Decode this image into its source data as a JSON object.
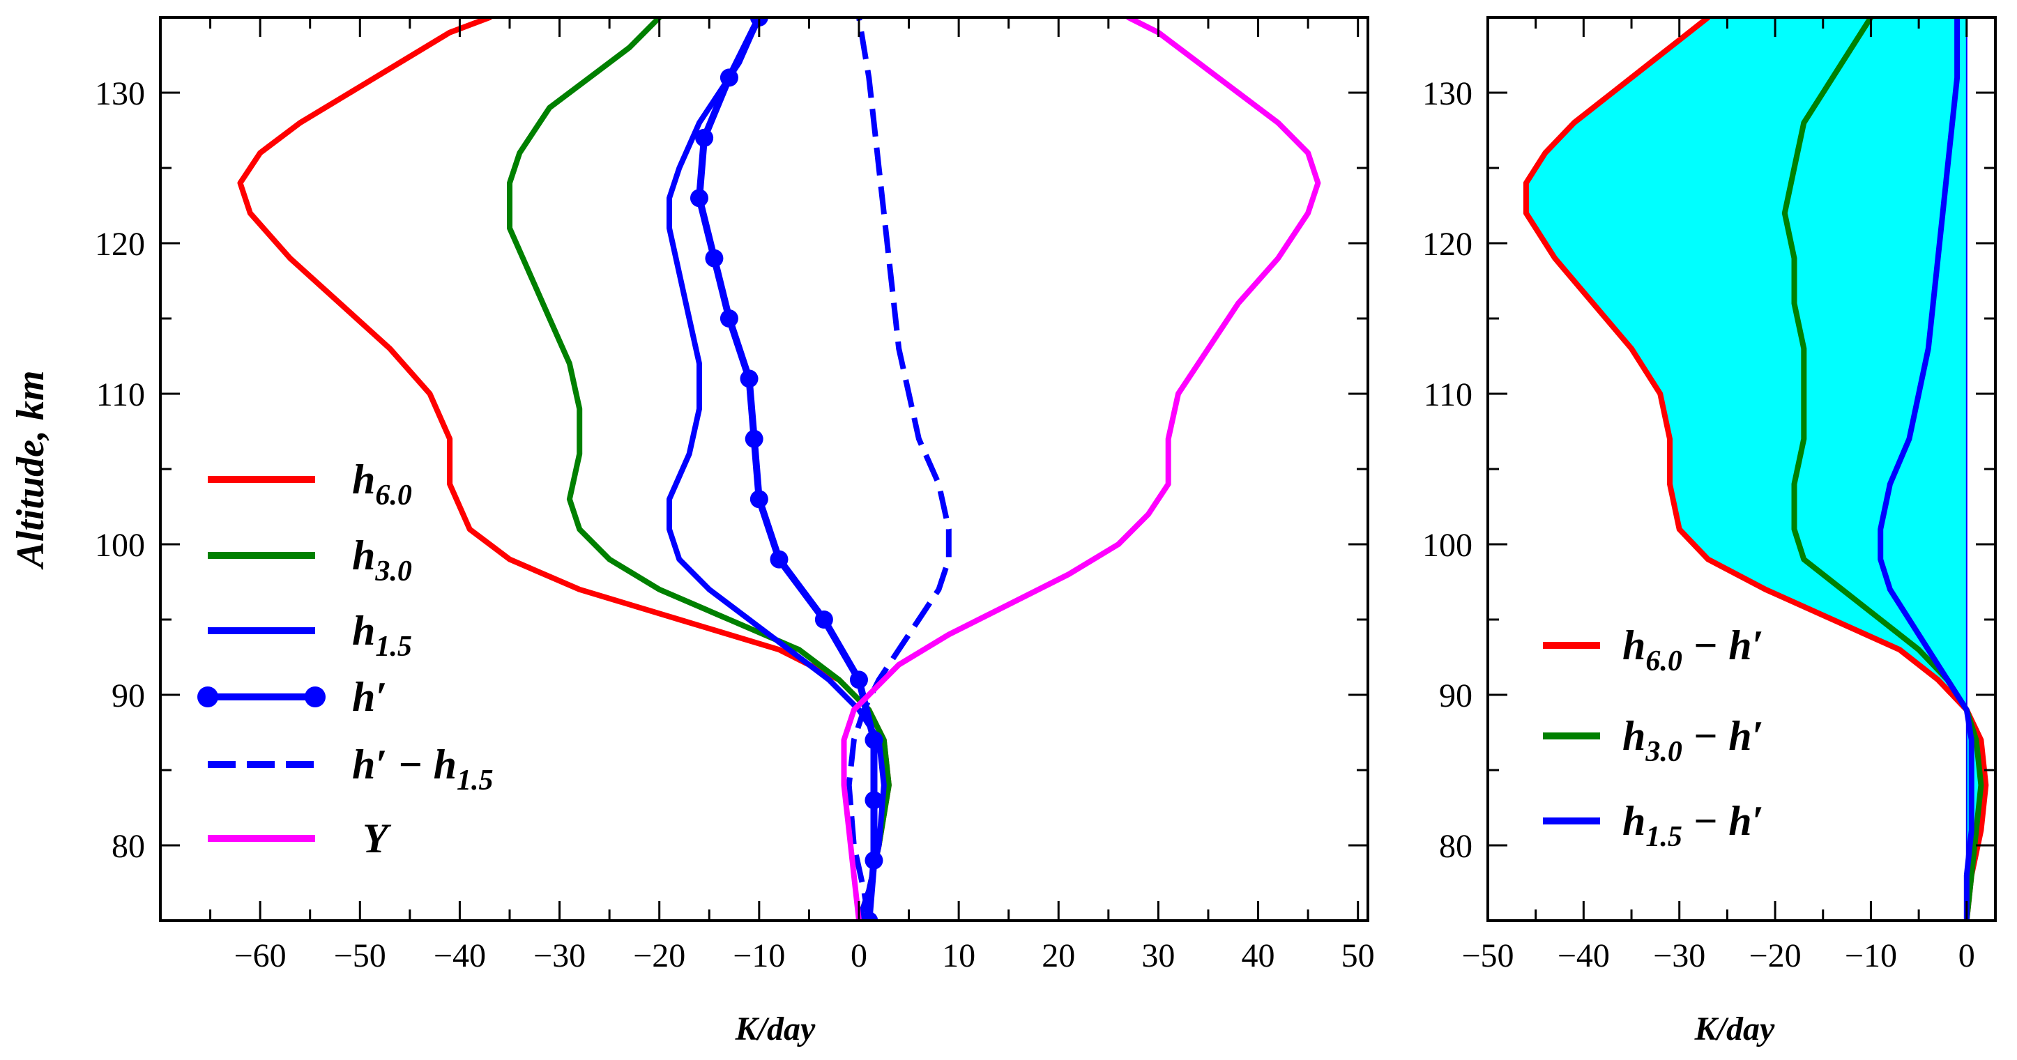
{
  "chart_data": [
    {
      "type": "line",
      "panel": "left",
      "xlabel": "K/day",
      "ylabel": "Altitude, km",
      "xlim": [
        -70,
        51
      ],
      "ylim": [
        75,
        135
      ],
      "xticks": [
        -60,
        -50,
        -40,
        -30,
        -20,
        -10,
        0,
        10,
        20,
        30,
        40,
        50
      ],
      "yticks": [
        80,
        90,
        100,
        110,
        120,
        130
      ],
      "xtick_labels": [
        "−60",
        "−50",
        "−40",
        "−30",
        "−20",
        "−10",
        "0",
        "10",
        "20",
        "30",
        "40",
        "50"
      ],
      "ytick_labels": [
        "80",
        "90",
        "100",
        "110",
        "120",
        "130"
      ],
      "legend_position": "left",
      "series": [
        {
          "key": "h6",
          "name": "h",
          "sub": "6.0",
          "suffix": "",
          "color": "#ff0000",
          "style": "solid",
          "points": [
            [
              0,
              75
            ],
            [
              1,
              77
            ],
            [
              2,
              80
            ],
            [
              3,
              84
            ],
            [
              2.5,
              87
            ],
            [
              1,
              89
            ],
            [
              -2,
              91
            ],
            [
              -8,
              93
            ],
            [
              -18,
              95
            ],
            [
              -28,
              97
            ],
            [
              -35,
              99
            ],
            [
              -39,
              101
            ],
            [
              -41,
              104
            ],
            [
              -41,
              107
            ],
            [
              -43,
              110
            ],
            [
              -47,
              113
            ],
            [
              -52,
              116
            ],
            [
              -57,
              119
            ],
            [
              -61,
              122
            ],
            [
              -62,
              124
            ],
            [
              -60,
              126
            ],
            [
              -56,
              128
            ],
            [
              -51,
              130
            ],
            [
              -46,
              132
            ],
            [
              -41,
              134
            ],
            [
              -37,
              135
            ]
          ]
        },
        {
          "key": "h3",
          "name": "h",
          "sub": "3.0",
          "suffix": "",
          "color": "#008000",
          "style": "solid",
          "points": [
            [
              0,
              75
            ],
            [
              1,
              77
            ],
            [
              2,
              80
            ],
            [
              3,
              84
            ],
            [
              2.5,
              87
            ],
            [
              1,
              89
            ],
            [
              -2,
              91
            ],
            [
              -6,
              93
            ],
            [
              -13,
              95
            ],
            [
              -20,
              97
            ],
            [
              -25,
              99
            ],
            [
              -28,
              101
            ],
            [
              -29,
              103
            ],
            [
              -28,
              106
            ],
            [
              -28,
              109
            ],
            [
              -29,
              112
            ],
            [
              -31,
              115
            ],
            [
              -33,
              118
            ],
            [
              -35,
              121
            ],
            [
              -35,
              124
            ],
            [
              -34,
              126
            ],
            [
              -31,
              129
            ],
            [
              -27,
              131
            ],
            [
              -23,
              133
            ],
            [
              -20,
              135
            ]
          ]
        },
        {
          "key": "h15",
          "name": "h",
          "sub": "1.5",
          "suffix": "",
          "color": "#0000ff",
          "style": "solid",
          "points": [
            [
              0,
              75
            ],
            [
              1,
              77
            ],
            [
              2,
              80
            ],
            [
              2.5,
              84
            ],
            [
              2,
              87
            ],
            [
              0,
              89
            ],
            [
              -3,
              91
            ],
            [
              -7,
              93
            ],
            [
              -11,
              95
            ],
            [
              -15,
              97
            ],
            [
              -18,
              99
            ],
            [
              -19,
              101
            ],
            [
              -19,
              103
            ],
            [
              -17,
              106
            ],
            [
              -16,
              109
            ],
            [
              -16,
              112
            ],
            [
              -17,
              115
            ],
            [
              -18,
              118
            ],
            [
              -19,
              121
            ],
            [
              -19,
              123
            ],
            [
              -18,
              125
            ],
            [
              -16,
              128
            ],
            [
              -14,
              130
            ],
            [
              -12,
              132
            ],
            [
              -10,
              135
            ]
          ]
        },
        {
          "key": "hp",
          "name": "h′",
          "sub": "",
          "suffix": "",
          "color": "#0000ff",
          "style": "solid-marker",
          "points": [
            [
              1,
              75
            ],
            [
              1.5,
              79
            ],
            [
              1.5,
              83
            ],
            [
              1.5,
              87
            ],
            [
              0,
              91
            ],
            [
              -3.5,
              95
            ],
            [
              -8,
              99
            ],
            [
              -10,
              103
            ],
            [
              -10.5,
              107
            ],
            [
              -11,
              111
            ],
            [
              -13,
              115
            ],
            [
              -14.5,
              119
            ],
            [
              -16,
              123
            ],
            [
              -15.5,
              127
            ],
            [
              -13,
              131
            ],
            [
              -10,
              135
            ]
          ]
        },
        {
          "key": "hp_minus",
          "name": "h′ − h",
          "sub": "1.5",
          "suffix": "",
          "color": "#0000ff",
          "style": "dashed",
          "points": [
            [
              1,
              75
            ],
            [
              0.5,
              77
            ],
            [
              -0.5,
              80
            ],
            [
              -1,
              84
            ],
            [
              -0.5,
              87
            ],
            [
              0.5,
              89
            ],
            [
              2,
              91
            ],
            [
              4,
              93
            ],
            [
              6,
              95
            ],
            [
              8,
              97
            ],
            [
              9,
              99
            ],
            [
              9,
              101
            ],
            [
              8,
              104
            ],
            [
              6,
              107
            ],
            [
              5,
              110
            ],
            [
              4,
              113
            ],
            [
              3.5,
              116
            ],
            [
              3,
              119
            ],
            [
              2.5,
              122
            ],
            [
              2,
              125
            ],
            [
              1.5,
              128
            ],
            [
              1,
              131
            ],
            [
              0.5,
              133
            ],
            [
              0,
              135
            ]
          ]
        },
        {
          "key": "Y",
          "name": "Y",
          "sub": "",
          "suffix": "",
          "color": "#ff00ff",
          "style": "solid",
          "points": [
            [
              0,
              75
            ],
            [
              -0.5,
              78
            ],
            [
              -1,
              81
            ],
            [
              -1.5,
              84
            ],
            [
              -1.5,
              87
            ],
            [
              -0.5,
              89
            ],
            [
              1,
              90
            ],
            [
              4,
              92
            ],
            [
              9,
              94
            ],
            [
              15,
              96
            ],
            [
              21,
              98
            ],
            [
              26,
              100
            ],
            [
              29,
              102
            ],
            [
              31,
              104
            ],
            [
              31,
              107
            ],
            [
              32,
              110
            ],
            [
              35,
              113
            ],
            [
              38,
              116
            ],
            [
              42,
              119
            ],
            [
              45,
              122
            ],
            [
              46,
              124
            ],
            [
              45,
              126
            ],
            [
              42,
              128
            ],
            [
              38,
              130
            ],
            [
              34,
              132
            ],
            [
              30,
              134
            ],
            [
              27,
              135
            ]
          ]
        }
      ]
    },
    {
      "type": "area",
      "panel": "right",
      "xlabel": "K/day",
      "xlim": [
        -50,
        3
      ],
      "ylim": [
        75,
        135
      ],
      "xticks": [
        -50,
        -40,
        -30,
        -20,
        -10,
        0
      ],
      "yticks": [
        80,
        90,
        100,
        110,
        120,
        130
      ],
      "xtick_labels": [
        "−50",
        "−40",
        "−30",
        "−20",
        "−10",
        "0"
      ],
      "ytick_labels": [
        "80",
        "90",
        "100",
        "110",
        "120",
        "130"
      ],
      "fill_color": "#00ffff",
      "legend_position": "bottom-left",
      "series": [
        {
          "key": "d6",
          "name": "h",
          "sub": "6.0",
          "suffix": " − h′",
          "color": "#ff0000",
          "style": "solid",
          "points": [
            [
              0,
              75
            ],
            [
              0.5,
              78
            ],
            [
              1.5,
              81
            ],
            [
              2,
              84
            ],
            [
              1.5,
              87
            ],
            [
              0,
              89
            ],
            [
              -3,
              91
            ],
            [
              -7,
              93
            ],
            [
              -14,
              95
            ],
            [
              -21,
              97
            ],
            [
              -27,
              99
            ],
            [
              -30,
              101
            ],
            [
              -31,
              104
            ],
            [
              -31,
              107
            ],
            [
              -32,
              110
            ],
            [
              -35,
              113
            ],
            [
              -39,
              116
            ],
            [
              -43,
              119
            ],
            [
              -46,
              122
            ],
            [
              -46,
              124
            ],
            [
              -44,
              126
            ],
            [
              -41,
              128
            ],
            [
              -37,
              130
            ],
            [
              -33,
              132
            ],
            [
              -29,
              134
            ],
            [
              -27,
              135
            ]
          ]
        },
        {
          "key": "d3",
          "name": "h",
          "sub": "3.0",
          "suffix": " − h′",
          "color": "#008000",
          "style": "solid",
          "points": [
            [
              0,
              75
            ],
            [
              0.5,
              78
            ],
            [
              1,
              81
            ],
            [
              1.5,
              84
            ],
            [
              1,
              87
            ],
            [
              0,
              89
            ],
            [
              -2,
              91
            ],
            [
              -5,
              93
            ],
            [
              -9,
              95
            ],
            [
              -13,
              97
            ],
            [
              -17,
              99
            ],
            [
              -18,
              101
            ],
            [
              -18,
              104
            ],
            [
              -17,
              107
            ],
            [
              -17,
              110
            ],
            [
              -17,
              113
            ],
            [
              -18,
              116
            ],
            [
              -18,
              119
            ],
            [
              -19,
              122
            ],
            [
              -18,
              125
            ],
            [
              -17,
              128
            ],
            [
              -15,
              130
            ],
            [
              -13,
              132
            ],
            [
              -11,
              134
            ],
            [
              -10,
              135
            ]
          ]
        },
        {
          "key": "d15",
          "name": "h",
          "sub": "1.5",
          "suffix": " − h′",
          "color": "#0000ff",
          "style": "solid",
          "points": [
            [
              0,
              75
            ],
            [
              0,
              78
            ],
            [
              0.5,
              81
            ],
            [
              0.5,
              84
            ],
            [
              0.5,
              87
            ],
            [
              0,
              89
            ],
            [
              -2,
              91
            ],
            [
              -4,
              93
            ],
            [
              -6,
              95
            ],
            [
              -8,
              97
            ],
            [
              -9,
              99
            ],
            [
              -9,
              101
            ],
            [
              -8,
              104
            ],
            [
              -6,
              107
            ],
            [
              -5,
              110
            ],
            [
              -4,
              113
            ],
            [
              -3.5,
              116
            ],
            [
              -3,
              119
            ],
            [
              -2.5,
              122
            ],
            [
              -2,
              125
            ],
            [
              -1.5,
              128
            ],
            [
              -1,
              131
            ],
            [
              -1,
              133
            ],
            [
              -1,
              135
            ]
          ]
        }
      ]
    }
  ]
}
